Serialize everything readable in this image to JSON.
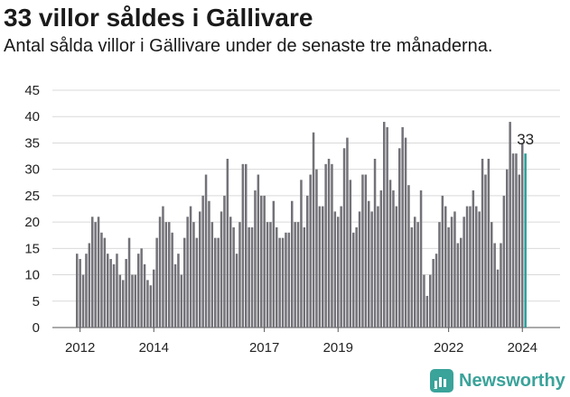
{
  "title": "33 villor såldes i Gällivare",
  "subtitle": "Antal sålda villor i Gällivare under de senaste tre månaderna.",
  "brand": {
    "name": "Newsworthy",
    "color": "#3aa39a"
  },
  "colors": {
    "bar": "#737278",
    "highlight": "#2a9d98",
    "grid": "#d9d9d9"
  },
  "chart_data": {
    "type": "bar",
    "title": "33 villor såldes i Gällivare",
    "ylim": [
      0,
      45
    ],
    "yticks": [
      0,
      5,
      10,
      15,
      20,
      25,
      30,
      35,
      40,
      45
    ],
    "xticks": [
      {
        "label": "2012",
        "date": "2012-01"
      },
      {
        "label": "2014",
        "date": "2014-01"
      },
      {
        "label": "2017",
        "date": "2017-01"
      },
      {
        "label": "2019",
        "date": "2019-01"
      },
      {
        "label": "2022",
        "date": "2022-01"
      },
      {
        "label": "2024",
        "date": "2024-01"
      }
    ],
    "grid": true,
    "start": "2011-12",
    "frequency": "monthly",
    "values": [
      14,
      13,
      10,
      14,
      16,
      21,
      20,
      21,
      18,
      17,
      14,
      13,
      12,
      14,
      10,
      9,
      13,
      17,
      10,
      10,
      14,
      15,
      12,
      9,
      8,
      11,
      17,
      21,
      23,
      20,
      20,
      18,
      12,
      14,
      10,
      17,
      21,
      23,
      20,
      17,
      22,
      25,
      29,
      24,
      20,
      17,
      17,
      22,
      25,
      32,
      21,
      19,
      14,
      20,
      31,
      31,
      19,
      19,
      26,
      29,
      25,
      25,
      20,
      20,
      24,
      19,
      17,
      17,
      18,
      18,
      24,
      20,
      20,
      28,
      19,
      25,
      29,
      37,
      30,
      23,
      23,
      31,
      32,
      31,
      22,
      21,
      23,
      34,
      36,
      28,
      18,
      19,
      22,
      29,
      29,
      24,
      22,
      32,
      23,
      26,
      39,
      38,
      28,
      26,
      23,
      34,
      38,
      36,
      27,
      19,
      21,
      20,
      26,
      10,
      6,
      10,
      13,
      14,
      20,
      25,
      23,
      19,
      21,
      22,
      16,
      17,
      21,
      23,
      23,
      26,
      23,
      22,
      32,
      29,
      32,
      20,
      16,
      11,
      16,
      25,
      30,
      39,
      33,
      33,
      29,
      35,
      33
    ],
    "highlight_last": true,
    "annotation": "33"
  }
}
